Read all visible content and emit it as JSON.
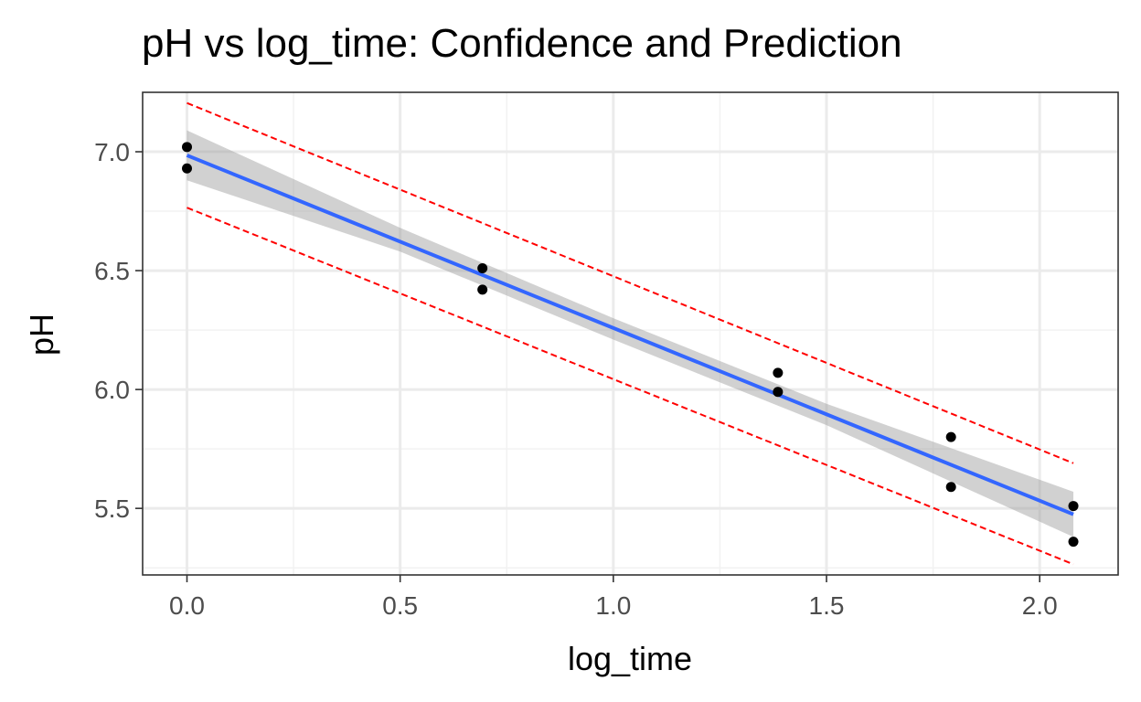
{
  "chart_data": {
    "type": "scatter",
    "title": "pH vs log_time: Confidence and Prediction",
    "xlabel": "log_time",
    "ylabel": "pH",
    "xlim": [
      -0.104,
      2.184
    ],
    "ylim": [
      5.22,
      7.25
    ],
    "x_ticks": [
      0.0,
      0.5,
      1.0,
      1.5,
      2.0
    ],
    "x_tick_labels": [
      "0.0",
      "0.5",
      "1.0",
      "1.5",
      "2.0"
    ],
    "y_ticks": [
      5.5,
      6.0,
      6.5,
      7.0
    ],
    "y_tick_labels": [
      "5.5",
      "6.0",
      "6.5",
      "7.0"
    ],
    "x_minor_ticks": [
      0.25,
      0.75,
      1.25,
      1.75
    ],
    "y_minor_ticks": [
      5.25,
      5.75,
      6.25,
      6.75
    ],
    "grid": true,
    "points": [
      {
        "x": 0.0,
        "y": 7.02
      },
      {
        "x": 0.0,
        "y": 6.93
      },
      {
        "x": 0.693,
        "y": 6.51
      },
      {
        "x": 0.693,
        "y": 6.42
      },
      {
        "x": 1.386,
        "y": 6.07
      },
      {
        "x": 1.386,
        "y": 5.99
      },
      {
        "x": 1.792,
        "y": 5.8
      },
      {
        "x": 1.792,
        "y": 5.59
      },
      {
        "x": 2.079,
        "y": 5.51
      },
      {
        "x": 2.079,
        "y": 5.36
      }
    ],
    "fit_line": {
      "x": [
        0.0,
        2.079
      ],
      "y": [
        6.985,
        5.475
      ]
    },
    "confidence_band": {
      "x": [
        0.0,
        0.5,
        1.0,
        1.5,
        2.079
      ],
      "lower": [
        6.88,
        6.58,
        6.21,
        5.85,
        5.38
      ],
      "upper": [
        7.09,
        6.68,
        6.3,
        5.94,
        5.57
      ]
    },
    "prediction_band": {
      "x": [
        0.0,
        2.079
      ],
      "lower": [
        6.765,
        5.265
      ],
      "upper": [
        7.205,
        5.69
      ]
    },
    "colors": {
      "points": "#000000",
      "fit_line": "#3366ff",
      "confidence_band": "#999999",
      "prediction_band": "#ff0000",
      "grid_major": "#ebebeb",
      "grid_minor": "#f2f2f2",
      "panel_border": "#333333"
    }
  }
}
